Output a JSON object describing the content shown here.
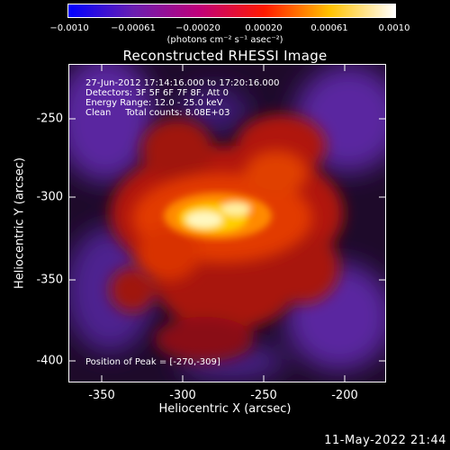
{
  "colorbar": {
    "ticks": [
      "−0.0010",
      "−0.00061",
      "−0.00020",
      "0.00020",
      "0.00061",
      "0.0010"
    ],
    "units": "(photons cm⁻² s⁻¹ asec⁻²)",
    "colors": [
      "#0000ff",
      "#6a1fb0",
      "#c0007a",
      "#ff1a00",
      "#ffc200",
      "#ffffff"
    ]
  },
  "title": "Reconstructed RHESSI Image",
  "info": {
    "line1": "27-Jun-2012 17:14:16.000 to 17:20:16.000",
    "line2": "Detectors: 3F 5F 6F 7F 8F, Att 0",
    "line3": "Energy Range: 12.0 - 25.0 keV",
    "line4": "Clean     Total counts: 8.08E+03"
  },
  "peak": "Position of Peak = [-270,-309]",
  "xaxis": {
    "title": "Heliocentric X (arcsec)",
    "ticks": [
      "-350",
      "-300",
      "-250",
      "-200"
    ]
  },
  "yaxis": {
    "title": "Heliocentric Y (arcsec)",
    "ticks": [
      "-250",
      "-300",
      "-350",
      "-400"
    ]
  },
  "timestamp": "11-May-2022 21:44"
}
